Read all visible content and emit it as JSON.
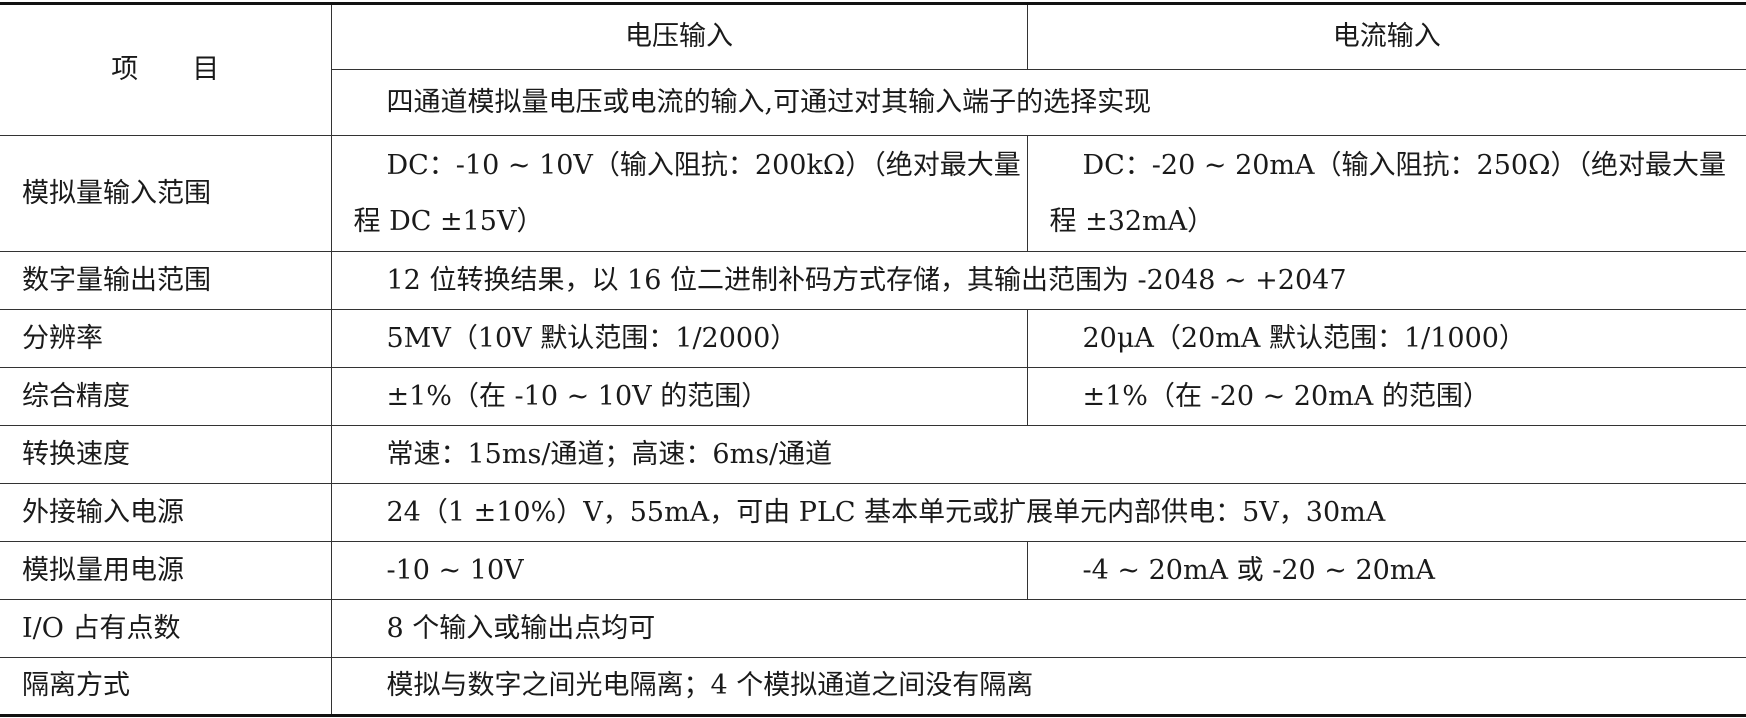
{
  "header": {
    "item_label": "项　　目",
    "voltage_input": "电压输入",
    "current_input": "电流输入",
    "description": "四通道模拟量电压或电流的输入,可通过对其输入端子的选择实现"
  },
  "rows": [
    {
      "label": "模拟量输入范围",
      "voltage": "DC：-10 ~ 10V（输入阻抗：200kΩ）（绝对最大量程 DC ±15V）",
      "current": "DC：-20 ~ 20mA（输入阻抗：250Ω）（绝对最大量程 ±32mA）"
    },
    {
      "label": "数字量输出范围",
      "value": "12 位转换结果，以 16 位二进制补码方式存储，其输出范围为 -2048 ~ +2047"
    },
    {
      "label": "分辨率",
      "voltage": "5MV（10V 默认范围：1/2000）",
      "current": "20μA（20mA 默认范围：1/1000）"
    },
    {
      "label": "综合精度",
      "voltage": "±1%（在 -10 ~ 10V 的范围）",
      "current": "±1%（在 -20 ~ 20mA 的范围）"
    },
    {
      "label": "转换速度",
      "value": "常速：15ms/通道；高速：6ms/通道"
    },
    {
      "label": "外接输入电源",
      "value": "24（1 ±10%）V，55mA，可由 PLC 基本单元或扩展单元内部供电：5V，30mA"
    },
    {
      "label": "模拟量用电源",
      "voltage": "-10 ~ 10V",
      "current": "-4 ~ 20mA 或 -20 ~ 20mA"
    },
    {
      "label": "I/O 占有点数",
      "value": "8 个输入或输出点均可"
    },
    {
      "label": "隔离方式",
      "value": "模拟与数字之间光电隔离；4 个模拟通道之间没有隔离"
    }
  ]
}
